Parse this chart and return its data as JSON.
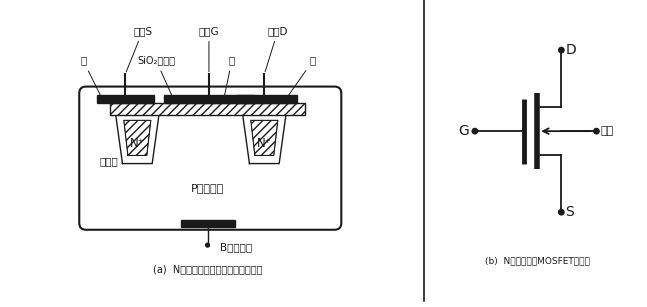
{
  "bg_color": "#ffffff",
  "line_color": "#1a1a1a",
  "title_a": "(a)  N沟道增强型场效应管结构示意图",
  "title_b": "(b)  N沟道增强型MOSFET管符号",
  "label_source": "源极S",
  "label_gate": "栅极G",
  "label_drain": "漏极D",
  "label_al1": "铝",
  "label_al2": "SiO₂绝缘层",
  "label_al3": "铝",
  "label_al4": "铝",
  "label_n1": "N⁺",
  "label_n2": "N⁺",
  "label_dep": "耗尽层",
  "label_p": "P型硅衬底",
  "label_b": "B衬底引线",
  "label_d": "D",
  "label_g": "G",
  "label_s": "S",
  "label_sub": "衬底",
  "font_cn": "SimSun",
  "font_fallback": "DejaVu Sans"
}
